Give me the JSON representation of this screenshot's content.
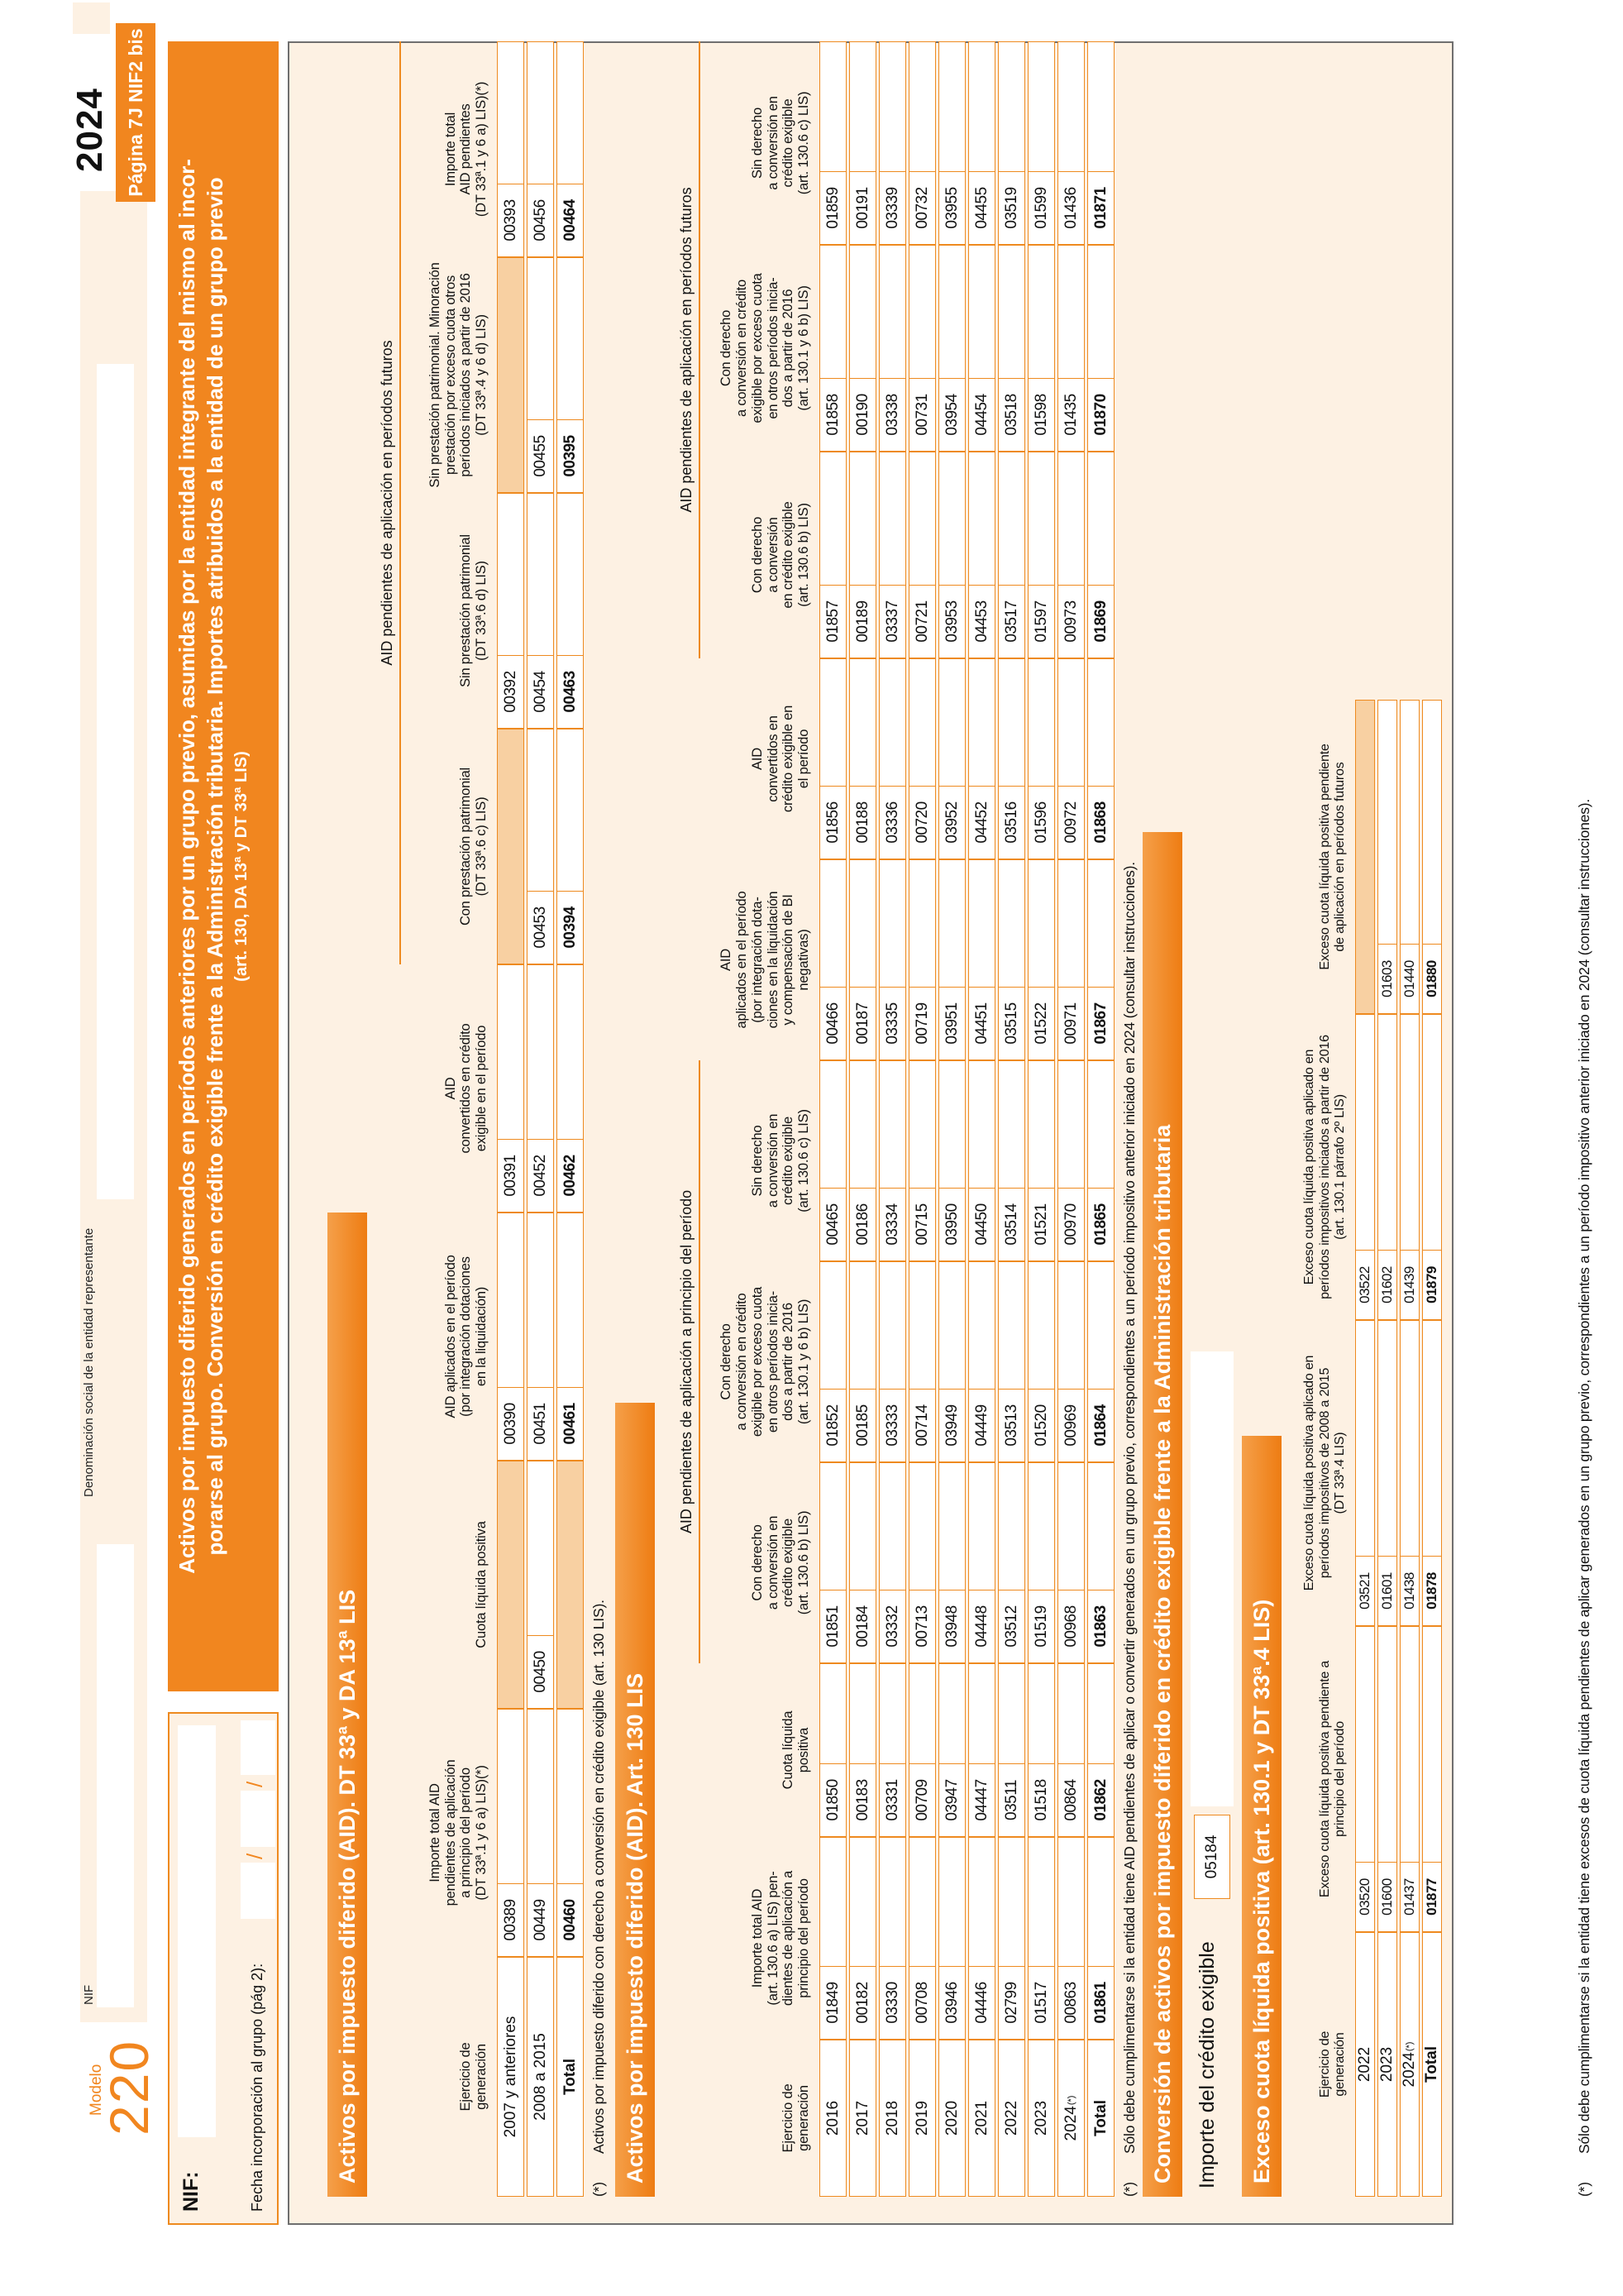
{
  "header": {
    "modelo_label": "Modelo",
    "modelo_number": "220",
    "nif_box_label": "NIF",
    "denominacion_label": "Denominación social de la entidad representante",
    "year": "2024",
    "page_badge": "Página 7J NIF2 bis",
    "nif2_label": "NIF:",
    "fecha_label": "Fecha incorporación al grupo  (pág 2):",
    "date_separator": "/",
    "banner_line1": "Activos por impuesto diferido generados en períodos anteriores por un grupo previo, asumidas por la entidad integrante del mismo al incor-",
    "banner_line2": "porarse al grupo. Conversión en crédito exigible frente a la Administración tributaria. Importes atribuidos a la entidad de un grupo previo",
    "banner_line3": "(art. 130, DA 13ª y DT 33ª LIS)"
  },
  "colors": {
    "orange": "#f1861f",
    "beige": "#fdf1e3",
    "blocked_cell": "#f8d0a2",
    "frame_gray": "#6f6f6f"
  },
  "section1": {
    "bar": "Activos por impuesto diferido (AID). DT 33ª y DA 13ª LIS",
    "group_header": "AID pendientes de aplicación en períodos futuros",
    "col_headers": [
      "Ejercicio de\ngeneración",
      "Importe total AID\npendientes de aplicación\na principio del período\n(DT 33ª.1 y 6 a) LIS)(*)",
      "Cuota líquida positiva",
      "AID aplicados en el período\n(por integración dotaciones\nen la liquidación)",
      "AID\nconvertidos en crédito\nexigible en el período",
      "Con prestación patrimonial\n(DT 33ª.6 c) LIS)",
      "Sin prestación patrimonial\n(DT 33ª.6 d) LIS)",
      "Sin prestación patrimonial. Minoración\nprestación por exceso cuota otros\nperíodos iniciados a partir de 2016\n(DT 33ª.4 y 6 d) LIS)",
      "Importe total\nAID pendientes\n(DT 33ª.1 y 6 a) LIS)(*)"
    ],
    "rows": [
      {
        "label": "2007 y anteriores",
        "cells": [
          "00389",
          null,
          "00390",
          "00391",
          null,
          "00392",
          null,
          "00393"
        ]
      },
      {
        "label": "2008 a 2015",
        "cells": [
          "00449",
          "00450",
          "00451",
          "00452",
          "00453",
          "00454",
          "00455",
          "00456"
        ]
      },
      {
        "label": "Total",
        "bold": true,
        "cells": [
          "00460",
          null,
          "00461",
          "00462",
          "00394",
          "00463",
          "00395",
          "00464"
        ]
      }
    ],
    "footnote_mark": "(*)",
    "footnote": "Activos por impuesto diferido con derecho a conversión en crédito exigible (art. 130 LIS)."
  },
  "section2": {
    "bar": "Activos por impuesto diferido (AID). Art. 130 LIS",
    "group_header_principio": "AID pendientes de aplicación a principio del período",
    "group_header_futuros": "AID pendientes de aplicación en períodos futuros",
    "col_headers": [
      "Ejercicio de\ngeneración",
      "Importe total AID\n(art. 130.6 a) LIS) pen-\ndientes de aplicación a\nprincipio del período",
      "Cuota líquida\npositiva",
      "Con derecho\na conversión en\ncrédito exigible\n(art. 130.6 b) LIS)",
      "Con derecho\na conversión en crédito\nexigible por exceso cuota\nen otros períodos inicia-\ndos a partir de 2016\n(art. 130.1 y 6 b) LIS)",
      "Sin derecho\na conversión en\ncrédito exigible\n(art. 130.6 c) LIS)",
      "AID\naplicados en el período\n(por integración dota-\nciones en la liquidación\ny compensación de BI\nnegativas)",
      "AID\nconvertidos en\ncrédito exigible en\nel período",
      "Con derecho\na conversión\nen crédito exigible\n(art. 130.6 b) LIS)",
      "Con derecho\na conversión en crédito\nexigible por exceso cuota\nen otros períodos inicia-\ndos a partir de 2016\n(art. 130.1 y 6 b) LIS)",
      "Sin derecho\na conversión en\ncrédito exigible\n(art. 130.6 c) LIS)"
    ],
    "rows": [
      {
        "label": "2016",
        "cells": [
          "01849",
          "01850",
          "01851",
          "01852",
          "00465",
          "00466",
          "01856",
          "01857",
          "01858",
          "01859"
        ]
      },
      {
        "label": "2017",
        "cells": [
          "00182",
          "00183",
          "00184",
          "00185",
          "00186",
          "00187",
          "00188",
          "00189",
          "00190",
          "00191"
        ]
      },
      {
        "label": "2018",
        "cells": [
          "03330",
          "03331",
          "03332",
          "03333",
          "03334",
          "03335",
          "03336",
          "03337",
          "03338",
          "03339"
        ]
      },
      {
        "label": "2019",
        "cells": [
          "00708",
          "00709",
          "00713",
          "00714",
          "00715",
          "00719",
          "00720",
          "00721",
          "00731",
          "00732"
        ]
      },
      {
        "label": "2020",
        "cells": [
          "03946",
          "03947",
          "03948",
          "03949",
          "03950",
          "03951",
          "03952",
          "03953",
          "03954",
          "03955"
        ]
      },
      {
        "label": "2021",
        "cells": [
          "04446",
          "04447",
          "04448",
          "04449",
          "04450",
          "04451",
          "04452",
          "04453",
          "04454",
          "04455"
        ]
      },
      {
        "label": "2022",
        "cells": [
          "02799",
          "03511",
          "03512",
          "03513",
          "03514",
          "03515",
          "03516",
          "03517",
          "03518",
          "03519"
        ]
      },
      {
        "label": "2023",
        "cells": [
          "01517",
          "01518",
          "01519",
          "01520",
          "01521",
          "01522",
          "01596",
          "01597",
          "01598",
          "01599"
        ]
      },
      {
        "label": "2024",
        "sup": "(*)",
        "cells": [
          "00863",
          "00864",
          "00968",
          "00969",
          "00970",
          "00971",
          "00972",
          "00973",
          "01435",
          "01436"
        ]
      },
      {
        "label": "Total",
        "bold": true,
        "cells": [
          "01861",
          "01862",
          "01863",
          "01864",
          "01865",
          "01867",
          "01868",
          "01869",
          "01870",
          "01871"
        ]
      }
    ],
    "footnote_mark": "(*)",
    "footnote": "Sólo debe cumplimentarse si la entidad tiene AID pendientes de aplicar o convertir generados en un grupo previo, correspondientes a un período impositivo anterior iniciado en 2024 (consultar instrucciones)."
  },
  "section3": {
    "bar": "Conversión de activos por impuesto diferido en crédito exigible frente a la Administración tributaria",
    "importe_label": "Importe del crédito exigible",
    "importe_code": "05184"
  },
  "section4": {
    "bar": "Exceso cuota líquida positiva (art. 130.1 y DT 33ª.4 LIS)",
    "col_headers": [
      "Ejercicio de\ngeneración",
      "Exceso cuota líquida positiva pendiente a\nprincipio del período",
      "Exceso cuota líquida positiva aplicado en\nperíodos impositivos de 2008 a 2015\n(DT 33ª.4 LIS)",
      "Exceso cuota líquida positiva aplicado en\nperíodos impositivos iniciados a partir de 2016\n(art. 130.1 párrafo 2º LIS)",
      "Exceso cuota líquida positiva pendiente\nde aplicación en períodos futuros"
    ],
    "rows": [
      {
        "label": "2022",
        "cells": [
          "03520",
          "03521",
          "03522",
          null
        ]
      },
      {
        "label": "2023",
        "cells": [
          "01600",
          "01601",
          "01602",
          "01603"
        ]
      },
      {
        "label": "2024",
        "sup": "(*)",
        "cells": [
          "01437",
          "01438",
          "01439",
          "01440"
        ]
      },
      {
        "label": "Total",
        "bold": true,
        "cells": [
          "01877",
          "01878",
          "01879",
          "01880"
        ]
      }
    ],
    "footnote_mark": "(*)",
    "footnote": "Sólo debe cumplimentarse si la entidad tiene excesos de cuota líquida pendientes de aplicar generados en un grupo previo, correspondientes a un período impositivo anterior iniciado en 2024 (consultar instrucciones)."
  }
}
